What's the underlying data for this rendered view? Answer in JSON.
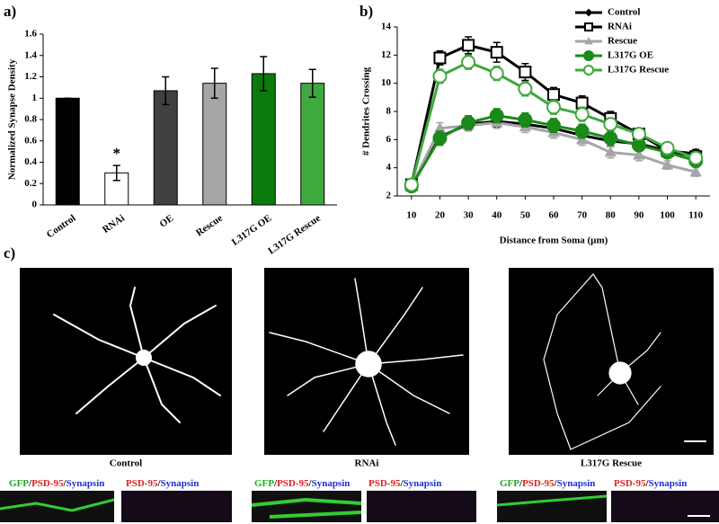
{
  "chart_data": [
    {
      "type": "bar",
      "panel_label": "a)",
      "ylabel": "Normalized Synapse Density",
      "categories": [
        "Control",
        "RNAi",
        "OE",
        "Rescue",
        "L317G OE",
        "L317G Rescue"
      ],
      "values": [
        1,
        0.3,
        1.07,
        1.14,
        1.23,
        1.14
      ],
      "errors": [
        0,
        0.07,
        0.13,
        0.14,
        0.16,
        0.13
      ],
      "colors": [
        "#000000",
        "#ffffff",
        "#404040",
        "#a6a6a6",
        "#0a7a0a",
        "#3fa83f"
      ],
      "annotation": "*",
      "annotation_category": 1,
      "ylim": [
        0,
        1.6
      ],
      "yticks": [
        0,
        0.2,
        0.4,
        0.6,
        0.8,
        1,
        1.2,
        1.4,
        1.6
      ]
    },
    {
      "type": "line",
      "panel_label": "b)",
      "xlabel": "Distance from Soma (µm)",
      "ylabel": "# Dendrites Crossing",
      "x": [
        10,
        20,
        30,
        40,
        50,
        60,
        70,
        80,
        90,
        100,
        110
      ],
      "series": [
        {
          "name": "Control",
          "color": "#000000",
          "marker": "diamond",
          "open": false,
          "values": [
            2.7,
            6.2,
            7.1,
            7.3,
            7.1,
            6.8,
            6.3,
            5.9,
            5.7,
            5.2,
            5.0
          ],
          "errors": [
            0.2,
            0.4,
            0.4,
            0.4,
            0.4,
            0.4,
            0.4,
            0.4,
            0.4,
            0.3,
            0.3
          ]
        },
        {
          "name": "RNAi",
          "color": "#000000",
          "marker": "square",
          "open": true,
          "values": [
            2.8,
            11.8,
            12.7,
            12.2,
            10.8,
            9.2,
            8.6,
            7.5,
            6.4,
            5.2,
            4.8
          ],
          "errors": [
            0.2,
            0.5,
            0.6,
            0.7,
            0.6,
            0.5,
            0.5,
            0.5,
            0.4,
            0.4,
            0.4
          ]
        },
        {
          "name": "Rescue",
          "color": "#a6a6a6",
          "marker": "triangle",
          "open": false,
          "values": [
            2.7,
            6.8,
            7.0,
            7.2,
            6.9,
            6.5,
            6.0,
            5.1,
            4.9,
            4.2,
            3.7
          ],
          "errors": [
            0.2,
            0.4,
            0.4,
            0.4,
            0.4,
            0.4,
            0.4,
            0.4,
            0.4,
            0.3,
            0.3
          ]
        },
        {
          "name": "L317G OE",
          "color": "#1a8a1a",
          "marker": "circle",
          "open": false,
          "values": [
            2.7,
            6.1,
            7.2,
            7.7,
            7.4,
            7.0,
            6.6,
            6.1,
            5.6,
            5.1,
            4.5
          ],
          "errors": [
            0.2,
            0.5,
            0.5,
            0.5,
            0.5,
            0.5,
            0.5,
            0.5,
            0.4,
            0.4,
            0.4
          ]
        },
        {
          "name": "L317G Rescue",
          "color": "#3fa83f",
          "marker": "circle",
          "open": true,
          "values": [
            2.8,
            10.5,
            11.5,
            10.7,
            9.6,
            8.3,
            7.8,
            7.1,
            6.4,
            5.4,
            4.7
          ],
          "errors": [
            0.2,
            0.5,
            0.5,
            0.5,
            0.5,
            0.5,
            0.5,
            0.4,
            0.4,
            0.4,
            0.4
          ]
        }
      ],
      "xlim": [
        5,
        115
      ],
      "xticks": [
        10,
        20,
        30,
        40,
        50,
        60,
        70,
        80,
        90,
        100,
        110
      ],
      "ylim": [
        2,
        14
      ],
      "yticks": [
        2,
        4,
        6,
        8,
        10,
        12,
        14
      ],
      "legend": "upper right"
    }
  ],
  "panel_c": {
    "label": "c)",
    "captions": [
      "Control",
      "RNAi",
      "L317G Rescue"
    ],
    "stain": {
      "gfp": "GFP",
      "sep": "/",
      "psd": "PSD-95",
      "syn": "Synapsin"
    }
  }
}
